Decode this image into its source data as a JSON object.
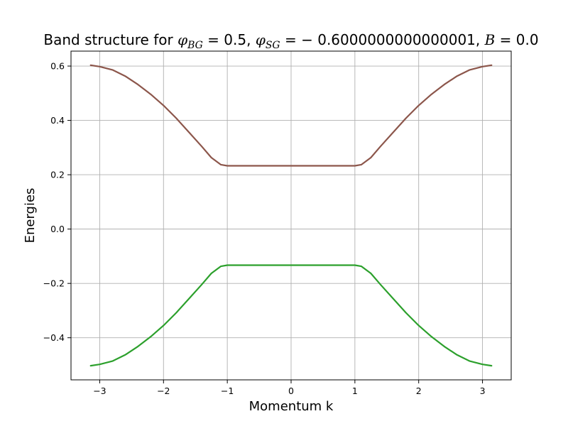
{
  "chart_data": {
    "type": "line",
    "title_parts": {
      "prefix": "Band structure for ",
      "phi": "φ",
      "bg_sub": "BG",
      "bg_val": " = 0.5, ",
      "sg_sub": "SG",
      "sg_val": " = − 0.6000000000000001, ",
      "b_sym": "B",
      "b_val": " = 0.0"
    },
    "xlabel": "Momentum k",
    "ylabel": "Energies",
    "xlim": [
      -3.45,
      3.45
    ],
    "ylim": [
      -0.555,
      0.655
    ],
    "xticks": [
      -3,
      -2,
      -1,
      0,
      1,
      2,
      3
    ],
    "xtick_labels": [
      "−3",
      "−2",
      "−1",
      "0",
      "1",
      "2",
      "3"
    ],
    "yticks": [
      -0.4,
      -0.2,
      0.0,
      0.2,
      0.4,
      0.6
    ],
    "ytick_labels": [
      "−0.4",
      "−0.2",
      "0.0",
      "0.2",
      "0.4",
      "0.6"
    ],
    "grid": true,
    "series": [
      {
        "color": "#8c564b",
        "x": [
          -3.1416,
          -3.0,
          -2.8,
          -2.6,
          -2.4,
          -2.2,
          -2.0,
          -1.8,
          -1.6,
          -1.4,
          -1.25,
          -1.1,
          -1.0,
          -0.5,
          0.0,
          0.5,
          1.0,
          1.1,
          1.25,
          1.4,
          1.6,
          1.8,
          2.0,
          2.2,
          2.4,
          2.6,
          2.8,
          3.0,
          3.1416
        ],
        "y": [
          0.603,
          0.598,
          0.586,
          0.563,
          0.532,
          0.496,
          0.455,
          0.408,
          0.356,
          0.304,
          0.263,
          0.237,
          0.233,
          0.233,
          0.233,
          0.233,
          0.233,
          0.237,
          0.263,
          0.304,
          0.356,
          0.408,
          0.455,
          0.496,
          0.532,
          0.563,
          0.586,
          0.598,
          0.603
        ]
      },
      {
        "color": "#2ca02c",
        "x": [
          -3.1416,
          -3.0,
          -2.8,
          -2.6,
          -2.4,
          -2.2,
          -2.0,
          -1.8,
          -1.6,
          -1.4,
          -1.25,
          -1.1,
          -1.0,
          -0.5,
          0.0,
          0.5,
          1.0,
          1.1,
          1.25,
          1.4,
          1.6,
          1.8,
          2.0,
          2.2,
          2.4,
          2.6,
          2.8,
          3.0,
          3.1416
        ],
        "y": [
          -0.503,
          -0.498,
          -0.486,
          -0.463,
          -0.432,
          -0.396,
          -0.355,
          -0.308,
          -0.256,
          -0.204,
          -0.163,
          -0.137,
          -0.133,
          -0.133,
          -0.133,
          -0.133,
          -0.133,
          -0.137,
          -0.163,
          -0.204,
          -0.256,
          -0.308,
          -0.355,
          -0.396,
          -0.432,
          -0.463,
          -0.486,
          -0.498,
          -0.503
        ]
      }
    ]
  }
}
